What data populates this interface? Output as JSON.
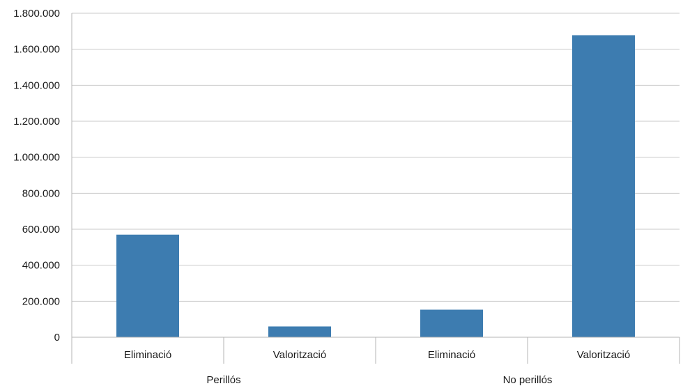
{
  "chart_data": {
    "type": "bar",
    "groups": [
      {
        "label": "Perillós",
        "categories": [
          "Eliminació",
          "Valorització"
        ],
        "values": [
          570000,
          60000
        ]
      },
      {
        "label": "No perillós",
        "categories": [
          "Eliminació",
          "Valorització"
        ],
        "values": [
          153000,
          1678000
        ]
      }
    ],
    "y_ticks": [
      "0",
      "200.000",
      "400.000",
      "600.000",
      "800.000",
      "1.000.000",
      "1.200.000",
      "1.400.000",
      "1.600.000",
      "1.800.000"
    ],
    "ylim": [
      0,
      1800000
    ],
    "grid": true,
    "legend": "none",
    "colors": {
      "bar": "#3d7cb0",
      "grid": "#c9c9c9",
      "axis": "#b5b5b5"
    }
  }
}
